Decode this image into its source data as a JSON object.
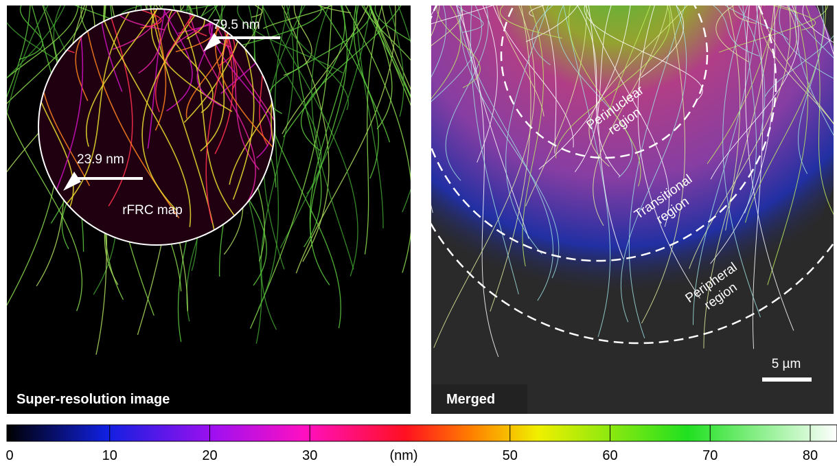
{
  "panels": {
    "left": {
      "label": "Super-resolution image",
      "inset_label": "rFRC map",
      "annotations": [
        "79.5 nm",
        "23.9 nm"
      ]
    },
    "right": {
      "label": "Merged",
      "regions": [
        [
          "Perinuclear",
          "region"
        ],
        [
          "Transitional",
          "region"
        ],
        [
          "Peripheral",
          "region"
        ]
      ],
      "scale_bar": "5 µm"
    }
  },
  "colorbar": {
    "lim": [
      0,
      83
    ],
    "ticks": [
      0,
      10,
      20,
      30,
      50,
      60,
      70,
      80
    ],
    "unit": "(nm)"
  }
}
